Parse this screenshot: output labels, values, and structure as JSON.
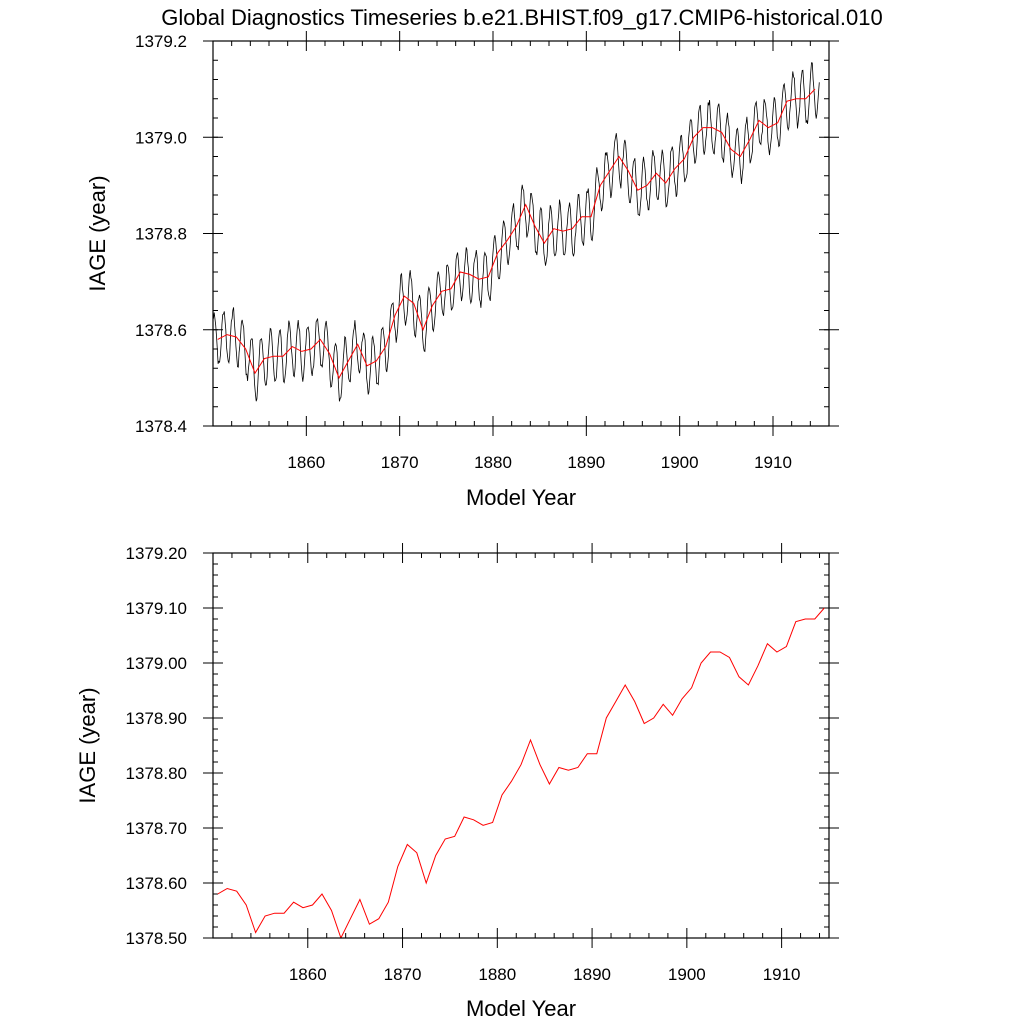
{
  "title": "Global Diagnostics Timeseries b.e21.BHIST.f09_g17.CMIP6-historical.010",
  "colors": {
    "monthly": "#000000",
    "annual": "#ff0000",
    "axes": "#000000",
    "background": "#ffffff"
  },
  "chart_data": [
    {
      "type": "line",
      "title": "Global Diagnostics Timeseries b.e21.BHIST.f09_g17.CMIP6-historical.010",
      "xlabel": "Model Year",
      "ylabel": "IAGE (year)",
      "xlim": [
        1850,
        1916
      ],
      "ylim": [
        1378.4,
        1379.2
      ],
      "xticks": [
        1860,
        1870,
        1880,
        1890,
        1900,
        1910
      ],
      "xtick_labels": [
        "1860",
        "1870",
        "1880",
        "1890",
        "1900",
        "1910"
      ],
      "yticks": [
        1378.4,
        1378.6,
        1378.8,
        1379.0,
        1379.2
      ],
      "ytick_labels": [
        "1378.4",
        "1378.6",
        "1378.8",
        "1379.0",
        "1379.2"
      ],
      "grid": false,
      "legend": "none",
      "series": [
        {
          "style": "monthly",
          "color": "#000000",
          "seasonal_amplitude": 0.055,
          "note_values": "monthly values vary around the annual means with a yearly cycle of amplitude ~0.055 year"
        },
        {
          "style": "annual",
          "color": "#ff0000",
          "x": [
            1850.5,
            1851.5,
            1852.5,
            1853.5,
            1854.5,
            1855.5,
            1856.5,
            1857.5,
            1858.5,
            1859.5,
            1860.5,
            1861.5,
            1862.5,
            1863.5,
            1864.5,
            1865.5,
            1866.5,
            1867.5,
            1868.5,
            1869.5,
            1870.5,
            1871.5,
            1872.5,
            1873.5,
            1874.5,
            1875.5,
            1876.5,
            1877.5,
            1878.5,
            1879.5,
            1880.5,
            1881.5,
            1882.5,
            1883.5,
            1884.5,
            1885.5,
            1886.5,
            1887.5,
            1888.5,
            1889.5,
            1890.5,
            1891.5,
            1892.5,
            1893.5,
            1894.5,
            1895.5,
            1896.5,
            1897.5,
            1898.5,
            1899.5,
            1900.5,
            1901.5,
            1902.5,
            1903.5,
            1904.5,
            1905.5,
            1906.5,
            1907.5,
            1908.5,
            1909.5,
            1910.5,
            1911.5,
            1912.5,
            1913.5,
            1914.5
          ],
          "values": [
            1378.58,
            1378.59,
            1378.585,
            1378.56,
            1378.51,
            1378.54,
            1378.545,
            1378.545,
            1378.565,
            1378.555,
            1378.56,
            1378.58,
            1378.55,
            1378.5,
            1378.535,
            1378.57,
            1378.525,
            1378.535,
            1378.565,
            1378.63,
            1378.67,
            1378.655,
            1378.6,
            1378.65,
            1378.68,
            1378.685,
            1378.72,
            1378.715,
            1378.705,
            1378.71,
            1378.76,
            1378.785,
            1378.815,
            1378.86,
            1378.815,
            1378.78,
            1378.81,
            1378.805,
            1378.81,
            1378.835,
            1378.835,
            1378.9,
            1378.93,
            1378.96,
            1378.93,
            1378.89,
            1378.9,
            1378.925,
            1378.905,
            1378.935,
            1378.955,
            1379.0,
            1379.02,
            1379.02,
            1379.01,
            1378.975,
            1378.96,
            1378.995,
            1379.035,
            1379.02,
            1379.03,
            1379.075,
            1379.08,
            1379.08,
            1379.1
          ]
        }
      ]
    },
    {
      "type": "line",
      "xlabel": "Model Year",
      "ylabel": "IAGE (year)",
      "xlim": [
        1850,
        1915
      ],
      "ylim": [
        1378.5,
        1379.2
      ],
      "xticks": [
        1860,
        1870,
        1880,
        1890,
        1900,
        1910
      ],
      "xtick_labels": [
        "1860",
        "1870",
        "1880",
        "1890",
        "1900",
        "1910"
      ],
      "yticks": [
        1378.5,
        1378.6,
        1378.7,
        1378.8,
        1378.9,
        1379.0,
        1379.1,
        1379.2
      ],
      "ytick_labels": [
        "1378.50",
        "1378.60",
        "1378.70",
        "1378.80",
        "1378.90",
        "1379.00",
        "1379.10",
        "1379.20"
      ],
      "grid": false,
      "legend": "none",
      "series": [
        {
          "style": "annual",
          "color": "#ff0000",
          "x": [
            1850.5,
            1851.5,
            1852.5,
            1853.5,
            1854.5,
            1855.5,
            1856.5,
            1857.5,
            1858.5,
            1859.5,
            1860.5,
            1861.5,
            1862.5,
            1863.5,
            1864.5,
            1865.5,
            1866.5,
            1867.5,
            1868.5,
            1869.5,
            1870.5,
            1871.5,
            1872.5,
            1873.5,
            1874.5,
            1875.5,
            1876.5,
            1877.5,
            1878.5,
            1879.5,
            1880.5,
            1881.5,
            1882.5,
            1883.5,
            1884.5,
            1885.5,
            1886.5,
            1887.5,
            1888.5,
            1889.5,
            1890.5,
            1891.5,
            1892.5,
            1893.5,
            1894.5,
            1895.5,
            1896.5,
            1897.5,
            1898.5,
            1899.5,
            1900.5,
            1901.5,
            1902.5,
            1903.5,
            1904.5,
            1905.5,
            1906.5,
            1907.5,
            1908.5,
            1909.5,
            1910.5,
            1911.5,
            1912.5,
            1913.5,
            1914.5
          ],
          "values": [
            1378.58,
            1378.59,
            1378.585,
            1378.56,
            1378.51,
            1378.54,
            1378.545,
            1378.545,
            1378.565,
            1378.555,
            1378.56,
            1378.58,
            1378.55,
            1378.5,
            1378.535,
            1378.57,
            1378.525,
            1378.535,
            1378.565,
            1378.63,
            1378.67,
            1378.655,
            1378.6,
            1378.65,
            1378.68,
            1378.685,
            1378.72,
            1378.715,
            1378.705,
            1378.71,
            1378.76,
            1378.785,
            1378.815,
            1378.86,
            1378.815,
            1378.78,
            1378.81,
            1378.805,
            1378.81,
            1378.835,
            1378.835,
            1378.9,
            1378.93,
            1378.96,
            1378.93,
            1378.89,
            1378.9,
            1378.925,
            1378.905,
            1378.935,
            1378.955,
            1379.0,
            1379.02,
            1379.02,
            1379.01,
            1378.975,
            1378.96,
            1378.995,
            1379.035,
            1379.02,
            1379.03,
            1379.075,
            1379.08,
            1379.08,
            1379.1
          ]
        }
      ]
    }
  ]
}
